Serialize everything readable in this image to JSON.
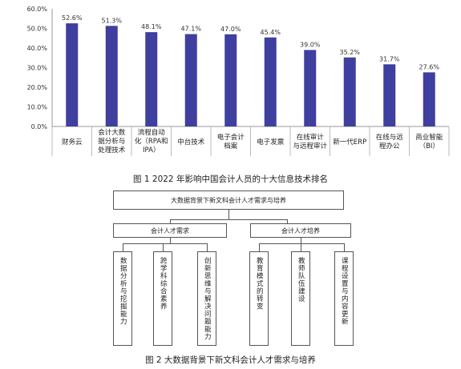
{
  "chart_data": {
    "type": "bar",
    "categories": [
      [
        "财务云"
      ],
      [
        "会计大数",
        "据分析与",
        "处理技术"
      ],
      [
        "流程自动",
        "化（RPA和",
        "IPA）"
      ],
      [
        "中台技术"
      ],
      [
        "电子会计",
        "档案"
      ],
      [
        "电子发票"
      ],
      [
        "在线审计",
        "与远程审计"
      ],
      [
        "新一代ERP"
      ],
      [
        "在线与远",
        "程办公"
      ],
      [
        "商业智能",
        "（BI）"
      ]
    ],
    "values": [
      52.6,
      51.3,
      48.1,
      47.1,
      47.0,
      45.4,
      39.0,
      35.2,
      31.7,
      27.6
    ],
    "value_labels": [
      "52.6%",
      "51.3%",
      "48.1%",
      "47.1%",
      "47.0%",
      "45.4%",
      "39.0%",
      "35.2%",
      "31.7%",
      "27.6%"
    ],
    "y_ticks": [
      "0.0%",
      "10.0%",
      "20.0%",
      "30.0%",
      "40.0%",
      "50.0%",
      "60.0%"
    ],
    "ylim": [
      0,
      60
    ],
    "bar_color": "#3f3fa0",
    "grid": false
  },
  "fig1": {
    "caption": "图 1   2022 年影响中国会计人员的十大信息技术排名"
  },
  "fig2": {
    "top": "大数据背景下新文科会计人才需求与培养",
    "left_group": "会计人才需求",
    "right_group": "会计人才培养",
    "leaves": [
      "数据分析与挖掘能力",
      "跨学科综合素养",
      "创新思维与解决问题能力",
      "教育模式的转变",
      "教师队伍建设",
      "课程设置与内容更新"
    ],
    "caption": "图 2   大数据背景下新文科会计人才需求与培养"
  }
}
